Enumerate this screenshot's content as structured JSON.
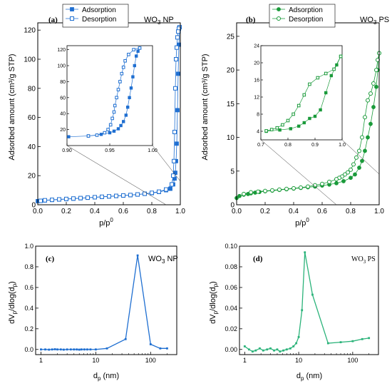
{
  "figure": {
    "colors": {
      "blue": "#1f6fd1",
      "green": "#1a9a3a",
      "teal": "#2bb37a"
    }
  },
  "chart_data": [
    {
      "id": "a",
      "type": "scatter",
      "panel_label": "(a)",
      "sample_label": "WO",
      "sample_sub": "3",
      "sample_suffix": " NP",
      "xlabel": "p/p",
      "xlabel_sup": "0",
      "ylabel": "Adsorbed amount (cm³/g STP)",
      "xlim": [
        0,
        1.0
      ],
      "ylim": [
        0,
        125
      ],
      "xticks": [
        "0.0",
        "0.2",
        "0.4",
        "0.6",
        "0.8",
        "1.0"
      ],
      "xtick_values": [
        0,
        0.2,
        0.4,
        0.6,
        0.8,
        1.0
      ],
      "yticks": [
        "0",
        "20",
        "40",
        "60",
        "80",
        "100",
        "120"
      ],
      "ytick_values": [
        0,
        20,
        40,
        60,
        80,
        100,
        120
      ],
      "legend_position": "top-center",
      "series": [
        {
          "name": "Adsorption",
          "marker": "filled-square",
          "color": "#1f6fd1",
          "x": [
            0.0,
            0.05,
            0.1,
            0.15,
            0.2,
            0.25,
            0.3,
            0.35,
            0.4,
            0.45,
            0.5,
            0.55,
            0.6,
            0.65,
            0.7,
            0.75,
            0.8,
            0.85,
            0.9,
            0.93,
            0.95,
            0.96,
            0.965,
            0.97,
            0.975,
            0.98,
            0.985,
            0.99,
            0.995
          ],
          "y": [
            2.5,
            3.0,
            3.3,
            3.6,
            3.9,
            4.2,
            4.5,
            4.8,
            5.1,
            5.4,
            5.7,
            6.0,
            6.3,
            6.6,
            7.0,
            7.5,
            8.0,
            8.8,
            10.0,
            11.0,
            14.0,
            18.0,
            22.0,
            30.0,
            42.0,
            65.0,
            90.0,
            110.0,
            122.0
          ]
        },
        {
          "name": "Desorption",
          "marker": "open-square",
          "color": "#1f6fd1",
          "x": [
            0.995,
            0.99,
            0.985,
            0.98,
            0.975,
            0.97,
            0.965,
            0.96,
            0.955,
            0.95,
            0.94,
            0.9,
            0.85,
            0.8,
            0.75,
            0.7,
            0.65,
            0.6,
            0.55,
            0.5,
            0.45,
            0.4,
            0.35,
            0.3,
            0.25,
            0.2,
            0.15,
            0.1,
            0.05,
            0.02
          ],
          "y": [
            122.0,
            121.0,
            119.0,
            115.0,
            108.0,
            100.0,
            80.0,
            50.0,
            30.0,
            20.0,
            14.0,
            10.5,
            9.0,
            8.2,
            7.6,
            7.1,
            6.7,
            6.4,
            6.1,
            5.8,
            5.5,
            5.2,
            4.9,
            4.6,
            4.3,
            4.0,
            3.7,
            3.4,
            3.1,
            2.7
          ]
        }
      ],
      "inset": {
        "xlim": [
          0.9,
          1.0
        ],
        "ylim": [
          0,
          125
        ],
        "xticks": [
          "0.90",
          "0.95",
          "1.00"
        ],
        "xtick_values": [
          0.9,
          0.95,
          1.0
        ],
        "yticks": [
          "20",
          "40",
          "60",
          "80",
          "100",
          "120"
        ],
        "ytick_values": [
          20,
          40,
          60,
          80,
          100,
          120
        ],
        "series": [
          {
            "name": "Adsorption",
            "marker": "filled-square",
            "x": [
              0.902,
              0.925,
              0.94,
              0.95,
              0.955,
              0.96,
              0.963,
              0.966,
              0.969,
              0.971,
              0.973,
              0.975,
              0.977,
              0.979,
              0.981,
              0.983,
              0.985
            ],
            "y": [
              11.0,
              12.0,
              14.0,
              16.0,
              18.0,
              21.0,
              25.0,
              30.0,
              38.0,
              48.0,
              60.0,
              72.0,
              86.0,
              100.0,
              112.0,
              118.0,
              122.0
            ]
          },
          {
            "name": "Desorption",
            "marker": "open-square",
            "x": [
              0.985,
              0.978,
              0.972,
              0.968,
              0.966,
              0.964,
              0.962,
              0.96,
              0.958,
              0.956,
              0.955,
              0.953,
              0.951,
              0.948,
              0.944,
              0.935,
              0.925
            ],
            "y": [
              122.0,
              120.0,
              114.0,
              106.0,
              98.0,
              90.0,
              80.0,
              70.0,
              60.0,
              50.0,
              42.0,
              34.0,
              26.0,
              20.0,
              16.0,
              13.0,
              12.0
            ]
          }
        ]
      }
    },
    {
      "id": "b",
      "type": "scatter",
      "panel_label": "(b)",
      "sample_label": "WO",
      "sample_sub": "3",
      "sample_suffix": " PS",
      "xlabel": "p/p",
      "xlabel_sup": "0",
      "ylabel": "Adsorbed amount (cm³/g STP)",
      "xlim": [
        0,
        1.0
      ],
      "ylim": [
        0,
        27
      ],
      "xticks": [
        "0.0",
        "0.2",
        "0.4",
        "0.6",
        "0.8",
        "1.0"
      ],
      "xtick_values": [
        0,
        0.2,
        0.4,
        0.6,
        0.8,
        1.0
      ],
      "yticks": [
        "0",
        "5",
        "10",
        "15",
        "20",
        "25"
      ],
      "ytick_values": [
        0,
        5,
        10,
        15,
        20,
        25
      ],
      "legend_position": "top-center",
      "series": [
        {
          "name": "Adsorption",
          "marker": "filled-circle",
          "color": "#1a9a3a",
          "x": [
            0.0,
            0.02,
            0.05,
            0.08,
            0.1,
            0.13,
            0.16,
            0.2,
            0.25,
            0.3,
            0.35,
            0.4,
            0.45,
            0.5,
            0.55,
            0.6,
            0.65,
            0.7,
            0.75,
            0.8,
            0.83,
            0.86,
            0.88,
            0.9,
            0.92,
            0.94,
            0.96,
            0.98,
            0.99,
            1.0
          ],
          "y": [
            1.0,
            1.3,
            1.5,
            1.6,
            1.7,
            1.8,
            1.9,
            2.0,
            2.1,
            2.2,
            2.3,
            2.4,
            2.5,
            2.6,
            2.7,
            2.85,
            3.0,
            3.2,
            3.5,
            4.0,
            4.5,
            5.5,
            6.5,
            8.0,
            10.0,
            12.0,
            14.5,
            17.5,
            20.0,
            22.5
          ]
        },
        {
          "name": "Desorption",
          "marker": "open-circle",
          "color": "#1a9a3a",
          "x": [
            1.0,
            0.99,
            0.98,
            0.96,
            0.94,
            0.92,
            0.9,
            0.88,
            0.86,
            0.84,
            0.82,
            0.8,
            0.78,
            0.76,
            0.74,
            0.72,
            0.7,
            0.65,
            0.6,
            0.55,
            0.5,
            0.45,
            0.4,
            0.35,
            0.3,
            0.25,
            0.2,
            0.15,
            0.1,
            0.05
          ],
          "y": [
            22.5,
            21.5,
            20.0,
            18.0,
            16.5,
            15.5,
            13.0,
            10.0,
            8.0,
            7.0,
            6.0,
            5.2,
            4.8,
            4.5,
            4.2,
            4.0,
            3.8,
            3.4,
            3.1,
            2.9,
            2.7,
            2.55,
            2.45,
            2.35,
            2.25,
            2.15,
            2.05,
            1.95,
            1.85,
            1.6
          ]
        }
      ],
      "inset": {
        "xlim": [
          0.7,
          1.0
        ],
        "ylim": [
          2,
          24
        ],
        "xticks": [
          "0.7",
          "0.8",
          "0.9",
          "1.0"
        ],
        "xtick_values": [
          0.7,
          0.8,
          0.9,
          1.0
        ],
        "yticks": [
          "4",
          "8",
          "12",
          "16",
          "20",
          "24"
        ],
        "ytick_values": [
          4,
          8,
          12,
          16,
          20,
          24
        ],
        "series": [
          {
            "name": "Adsorption",
            "marker": "filled-square",
            "x": [
              0.72,
              0.77,
              0.81,
              0.84,
              0.86,
              0.88,
              0.9,
              0.92,
              0.94,
              0.96,
              0.98,
              0.995
            ],
            "y": [
              4.0,
              4.3,
              4.6,
              5.2,
              6.0,
              7.0,
              7.5,
              9.0,
              13.0,
              17.0,
              19.5,
              21.5
            ]
          },
          {
            "name": "Desorption",
            "marker": "open-square",
            "x": [
              0.995,
              0.97,
              0.94,
              0.91,
              0.88,
              0.86,
              0.84,
              0.82,
              0.8,
              0.78,
              0.76,
              0.74,
              0.72
            ],
            "y": [
              21.5,
              18.5,
              17.5,
              16.5,
              15.0,
              12.5,
              10.0,
              8.0,
              6.5,
              5.5,
              4.8,
              4.4,
              4.1
            ]
          }
        ]
      }
    },
    {
      "id": "c",
      "type": "line",
      "panel_label": "(c)",
      "sample_label": "WO",
      "sample_sub": "3",
      "sample_suffix": " NP",
      "xlabel": "d",
      "xlabel_sub": "p",
      "xlabel_suffix": " (nm)",
      "ylabel": "dV/dlog(d)",
      "ylabel_sub1": "p",
      "ylabel_sub2": "p",
      "xscale": "log",
      "xlim": [
        0.8,
        300
      ],
      "ylim": [
        -0.05,
        1.0
      ],
      "xticks": [
        "1",
        "10",
        "100"
      ],
      "xtick_values": [
        1,
        10,
        100
      ],
      "yticks": [
        "0.0",
        "0.2",
        "0.4",
        "0.6",
        "0.8",
        "1.0"
      ],
      "ytick_values": [
        0,
        0.2,
        0.4,
        0.6,
        0.8,
        1.0
      ],
      "series": [
        {
          "name": "",
          "color": "#1f6fd1",
          "x": [
            1.0,
            1.2,
            1.4,
            1.6,
            1.8,
            2.0,
            2.3,
            2.6,
            3.0,
            3.5,
            4.0,
            4.5,
            5.0,
            5.5,
            6.2,
            7.0,
            8.0,
            10.0,
            16.0,
            35.0,
            58.0,
            100.0,
            150.0,
            200.0
          ],
          "y": [
            0.0,
            0.0,
            -0.002,
            0.0,
            0.002,
            0.0,
            0.0,
            -0.002,
            0.0,
            0.0,
            0.0,
            0.0,
            -0.002,
            0.0,
            0.0,
            0.0,
            0.0,
            0.0,
            0.01,
            0.1,
            0.91,
            0.05,
            0.01,
            0.01
          ]
        }
      ]
    },
    {
      "id": "d",
      "type": "line",
      "panel_label": "(d)",
      "sample_label": "WO",
      "sample_sub": "3",
      "sample_suffix": " PS",
      "xlabel": "d",
      "xlabel_sub": "p",
      "xlabel_suffix": " (nm)",
      "ylabel": "dV/dlog(d)",
      "ylabel_sub1": "p",
      "ylabel_sub2": "p",
      "xscale": "log",
      "xlim": [
        0.8,
        300
      ],
      "ylim": [
        -0.005,
        0.1
      ],
      "xticks": [
        "1",
        "10",
        "100"
      ],
      "xtick_values": [
        1,
        10,
        100
      ],
      "yticks": [
        "0.00",
        "0.02",
        "0.04",
        "0.06",
        "0.08",
        "0.10"
      ],
      "ytick_values": [
        0,
        0.02,
        0.04,
        0.06,
        0.08,
        0.1
      ],
      "series": [
        {
          "name": "",
          "color": "#2bb37a",
          "x": [
            1.0,
            1.2,
            1.4,
            1.6,
            1.9,
            2.2,
            2.6,
            3.0,
            3.5,
            4.0,
            4.5,
            5.2,
            6.0,
            7.0,
            8.0,
            9.0,
            10.0,
            11.5,
            13.0,
            18.0,
            35.0,
            60.0,
            100.0,
            150.0,
            200.0
          ],
          "y": [
            0.003,
            0.0,
            -0.002,
            -0.001,
            0.001,
            -0.001,
            0.0,
            0.001,
            -0.001,
            0.0,
            -0.002,
            -0.001,
            0.0,
            0.001,
            0.003,
            0.006,
            0.012,
            0.038,
            0.094,
            0.053,
            0.006,
            0.007,
            0.008,
            0.01,
            0.011
          ]
        }
      ]
    }
  ]
}
